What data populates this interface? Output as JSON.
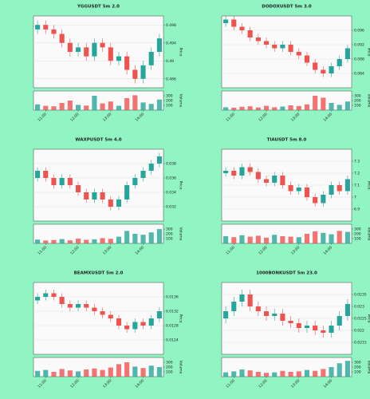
{
  "chart_data": [
    {
      "type": "candlestick",
      "title": "YGGUSDT 5m 2.0",
      "ylabel": "Price",
      "y2label": "Volume",
      "x": [
        null,
        "11:00",
        null,
        null,
        null,
        "12:00",
        null,
        null,
        null,
        "13:00",
        null,
        null,
        null,
        "14:00",
        null,
        null
      ],
      "open": [
        0.497,
        0.498,
        0.497,
        0.496,
        0.494,
        0.492,
        0.493,
        0.491,
        0.494,
        0.493,
        0.49,
        0.491,
        0.488,
        0.486,
        0.489,
        0.492
      ],
      "high": [
        0.499,
        0.499,
        0.498,
        0.497,
        0.495,
        0.494,
        0.494,
        0.495,
        0.495,
        0.494,
        0.492,
        0.492,
        0.489,
        0.49,
        0.493,
        0.496
      ],
      "low": [
        0.496,
        0.496,
        0.495,
        0.493,
        0.491,
        0.491,
        0.49,
        0.49,
        0.492,
        0.489,
        0.489,
        0.487,
        0.485,
        0.485,
        0.488,
        0.491
      ],
      "close": [
        0.498,
        0.497,
        0.496,
        0.494,
        0.492,
        0.493,
        0.491,
        0.494,
        0.493,
        0.49,
        0.491,
        0.488,
        0.486,
        0.489,
        0.492,
        0.495
      ],
      "volume": [
        120,
        90,
        80,
        150,
        200,
        110,
        95,
        300,
        140,
        180,
        90,
        250,
        310,
        160,
        130,
        220
      ],
      "ylim": [
        0.484,
        0.5
      ],
      "yticks": [
        0.486,
        0.49,
        0.494,
        0.498
      ],
      "y2lim": [
        0,
        400
      ],
      "y2ticks": [
        100,
        200,
        300
      ],
      "up_color": "#26a69a",
      "down_color": "#ef5350",
      "grid": true
    },
    {
      "type": "candlestick",
      "title": "DODOXUSDT 5m 3.0",
      "ylabel": "Price",
      "y2label": "Volume",
      "x": [
        null,
        "11:00",
        null,
        null,
        null,
        "12:00",
        null,
        null,
        null,
        "13:00",
        null,
        null,
        null,
        "14:00",
        null,
        null
      ],
      "open": [
        0.098,
        0.099,
        0.097,
        0.096,
        0.094,
        0.093,
        0.092,
        0.091,
        0.092,
        0.09,
        0.089,
        0.087,
        0.085,
        0.084,
        0.086,
        0.088
      ],
      "high": [
        0.1,
        0.1,
        0.098,
        0.097,
        0.095,
        0.094,
        0.093,
        0.093,
        0.093,
        0.091,
        0.09,
        0.088,
        0.086,
        0.087,
        0.089,
        0.092
      ],
      "low": [
        0.097,
        0.096,
        0.095,
        0.093,
        0.092,
        0.091,
        0.09,
        0.09,
        0.089,
        0.088,
        0.086,
        0.084,
        0.083,
        0.083,
        0.085,
        0.087
      ],
      "close": [
        0.099,
        0.097,
        0.096,
        0.094,
        0.093,
        0.092,
        0.091,
        0.092,
        0.09,
        0.089,
        0.087,
        0.085,
        0.084,
        0.086,
        0.088,
        0.091
      ],
      "volume": [
        60,
        50,
        70,
        80,
        55,
        90,
        60,
        75,
        100,
        85,
        120,
        300,
        260,
        150,
        110,
        180
      ],
      "ylim": [
        0.08,
        0.1
      ],
      "yticks": [
        0.084,
        0.088,
        0.092,
        0.096
      ],
      "y2lim": [
        0,
        400
      ],
      "y2ticks": [
        100,
        200,
        300
      ],
      "up_color": "#26a69a",
      "down_color": "#ef5350",
      "grid": true
    },
    {
      "type": "candlestick",
      "title": "WAXPUSDT 5m 4.0",
      "ylabel": "Price",
      "y2label": "Volume",
      "x": [
        null,
        "11:00",
        null,
        null,
        null,
        "12:00",
        null,
        null,
        null,
        "13:00",
        null,
        null,
        null,
        "14:00",
        null,
        null
      ],
      "open": [
        0.036,
        0.037,
        0.036,
        0.035,
        0.036,
        0.035,
        0.034,
        0.033,
        0.034,
        0.033,
        0.032,
        0.033,
        0.035,
        0.036,
        0.037,
        0.038
      ],
      "high": [
        0.0375,
        0.0375,
        0.0365,
        0.0365,
        0.0365,
        0.0355,
        0.0345,
        0.0345,
        0.0345,
        0.0335,
        0.0335,
        0.0355,
        0.0365,
        0.0375,
        0.0385,
        0.0395
      ],
      "low": [
        0.0355,
        0.0355,
        0.0345,
        0.0345,
        0.0345,
        0.0335,
        0.0325,
        0.0325,
        0.0325,
        0.0315,
        0.0315,
        0.0325,
        0.0345,
        0.0355,
        0.0365,
        0.0375
      ],
      "close": [
        0.037,
        0.036,
        0.035,
        0.036,
        0.035,
        0.034,
        0.033,
        0.034,
        0.033,
        0.032,
        0.033,
        0.035,
        0.036,
        0.037,
        0.038,
        0.039
      ],
      "volume": [
        80,
        60,
        70,
        90,
        65,
        100,
        75,
        85,
        110,
        95,
        140,
        260,
        200,
        180,
        230,
        300
      ],
      "ylim": [
        0.03,
        0.04
      ],
      "yticks": [
        0.032,
        0.034,
        0.036,
        0.038
      ],
      "y2lim": [
        0,
        400
      ],
      "y2ticks": [
        100,
        200,
        300
      ],
      "up_color": "#26a69a",
      "down_color": "#ef5350",
      "grid": true
    },
    {
      "type": "candlestick",
      "title": "TIAUSDT 5m 8.0",
      "ylabel": "Price",
      "y2label": "Volume",
      "x": [
        null,
        "11:00",
        null,
        null,
        null,
        "12:00",
        null,
        null,
        null,
        "13:00",
        null,
        null,
        null,
        "14:00",
        null,
        null
      ],
      "open": [
        7.2,
        7.22,
        7.18,
        7.25,
        7.21,
        7.15,
        7.12,
        7.18,
        7.1,
        7.05,
        7.08,
        7.0,
        6.95,
        7.02,
        7.1,
        7.05
      ],
      "high": [
        7.25,
        7.25,
        7.28,
        7.28,
        7.24,
        7.18,
        7.21,
        7.21,
        7.13,
        7.11,
        7.11,
        7.03,
        7.05,
        7.13,
        7.13,
        7.18
      ],
      "low": [
        7.17,
        7.15,
        7.15,
        7.18,
        7.12,
        7.09,
        7.09,
        7.07,
        7.02,
        7.02,
        6.97,
        6.92,
        6.92,
        6.99,
        7.02,
        7.02
      ],
      "close": [
        7.22,
        7.18,
        7.25,
        7.21,
        7.15,
        7.12,
        7.18,
        7.1,
        7.05,
        7.08,
        7.0,
        6.95,
        7.02,
        7.1,
        7.05,
        7.15
      ],
      "volume": [
        150,
        130,
        170,
        140,
        160,
        120,
        180,
        150,
        140,
        130,
        200,
        250,
        220,
        190,
        260,
        240
      ],
      "ylim": [
        6.8,
        7.4
      ],
      "yticks": [
        6.9,
        7.0,
        7.1,
        7.2,
        7.3
      ],
      "y2lim": [
        0,
        400
      ],
      "y2ticks": [
        100,
        200,
        300
      ],
      "up_color": "#26a69a",
      "down_color": "#ef5350",
      "grid": true
    },
    {
      "type": "candlestick",
      "title": "BEAMXUSDT 5m 2.0",
      "ylabel": "Price",
      "y2label": "Volume",
      "x": [
        null,
        "11:00",
        null,
        null,
        null,
        "12:00",
        null,
        null,
        null,
        "13:00",
        null,
        null,
        null,
        "14:00",
        null,
        null
      ],
      "open": [
        0.0135,
        0.0136,
        0.0137,
        0.0136,
        0.0134,
        0.0133,
        0.0134,
        0.0133,
        0.0132,
        0.0131,
        0.013,
        0.0128,
        0.0127,
        0.0129,
        0.0128,
        0.013
      ],
      "high": [
        0.0137,
        0.0138,
        0.0138,
        0.0137,
        0.0135,
        0.0135,
        0.0135,
        0.0134,
        0.0133,
        0.0132,
        0.0131,
        0.0129,
        0.013,
        0.013,
        0.0131,
        0.0133
      ],
      "low": [
        0.0134,
        0.0135,
        0.0135,
        0.0133,
        0.0132,
        0.0132,
        0.0132,
        0.0131,
        0.013,
        0.0129,
        0.0127,
        0.0126,
        0.0126,
        0.0127,
        0.0127,
        0.0129
      ],
      "close": [
        0.0136,
        0.0137,
        0.0136,
        0.0134,
        0.0133,
        0.0134,
        0.0133,
        0.0132,
        0.0131,
        0.013,
        0.0128,
        0.0127,
        0.0129,
        0.0128,
        0.013,
        0.0132
      ],
      "volume": [
        120,
        140,
        100,
        160,
        130,
        110,
        150,
        170,
        140,
        190,
        260,
        300,
        210,
        180,
        230,
        200
      ],
      "ylim": [
        0.012,
        0.014
      ],
      "yticks": [
        0.0124,
        0.0128,
        0.0132,
        0.0136
      ],
      "y2lim": [
        0,
        400
      ],
      "y2ticks": [
        100,
        200,
        300
      ],
      "up_color": "#26a69a",
      "down_color": "#ef5350",
      "grid": true
    },
    {
      "type": "candlestick",
      "title": "1000BONKUSDT 5m 23.0",
      "ylabel": "Price",
      "y2label": "Volume",
      "x": [
        null,
        "11:00",
        null,
        null,
        null,
        "12:00",
        null,
        null,
        null,
        "13:00",
        null,
        null,
        null,
        "14:00",
        null,
        null
      ],
      "open": [
        0.0225,
        0.0228,
        0.0232,
        0.0235,
        0.023,
        0.0228,
        0.0226,
        0.0227,
        0.0224,
        0.0223,
        0.0221,
        0.0222,
        0.022,
        0.0219,
        0.0222,
        0.0226
      ],
      "high": [
        0.023,
        0.0234,
        0.0237,
        0.0237,
        0.0232,
        0.023,
        0.0229,
        0.0229,
        0.0226,
        0.0225,
        0.0224,
        0.0224,
        0.0222,
        0.0224,
        0.0228,
        0.0233
      ],
      "low": [
        0.0223,
        0.0226,
        0.023,
        0.0228,
        0.0226,
        0.0224,
        0.0224,
        0.0222,
        0.0221,
        0.0219,
        0.0219,
        0.0218,
        0.0217,
        0.0217,
        0.022,
        0.0224
      ],
      "close": [
        0.0228,
        0.0232,
        0.0235,
        0.023,
        0.0228,
        0.0226,
        0.0227,
        0.0224,
        0.0223,
        0.0221,
        0.0222,
        0.022,
        0.0219,
        0.0222,
        0.0226,
        0.0231
      ],
      "volume": [
        90,
        110,
        150,
        130,
        100,
        80,
        90,
        120,
        100,
        110,
        140,
        120,
        160,
        200,
        280,
        330
      ],
      "ylim": [
        0.021,
        0.024
      ],
      "yticks": [
        0.0215,
        0.022,
        0.0225,
        0.023,
        0.0235
      ],
      "y2lim": [
        0,
        400
      ],
      "y2ticks": [
        100,
        200,
        300
      ],
      "up_color": "#26a69a",
      "down_color": "#ef5350",
      "grid": true
    }
  ]
}
